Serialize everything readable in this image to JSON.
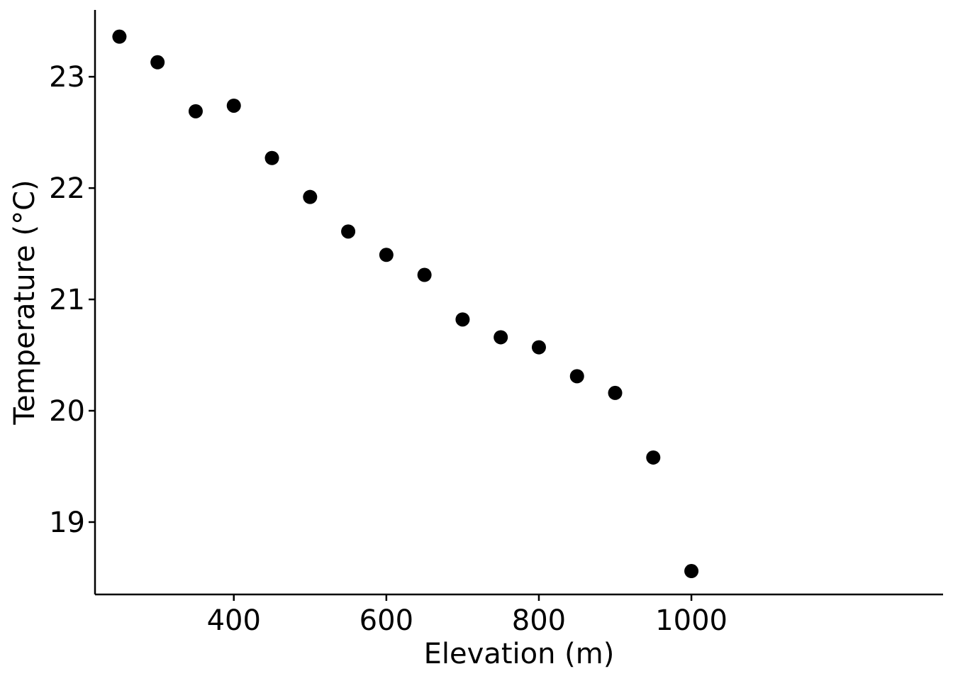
{
  "chart_data": {
    "type": "scatter",
    "xlabel": "Elevation (m)",
    "ylabel": "Temperature (°C)",
    "xlim": [
      218,
      1330
    ],
    "ylim": [
      18.35,
      23.6
    ],
    "x_ticks": [
      400,
      600,
      800,
      1000
    ],
    "y_ticks": [
      19,
      20,
      21,
      22,
      23
    ],
    "grid": false,
    "legend": "none",
    "point_color": "#000000",
    "series": [
      {
        "x": [
          250,
          300,
          350,
          400,
          450,
          500,
          550,
          600,
          650,
          700,
          750,
          800,
          850,
          900,
          950,
          1000
        ],
        "y": [
          23.36,
          23.13,
          22.69,
          22.74,
          22.27,
          21.92,
          21.61,
          21.4,
          21.22,
          20.82,
          20.66,
          20.57,
          20.31,
          20.16,
          19.58,
          18.56
        ]
      }
    ]
  }
}
